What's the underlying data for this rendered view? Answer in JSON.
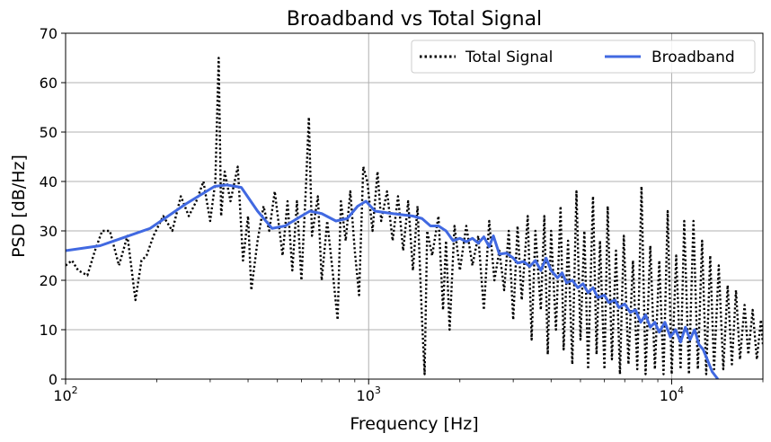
{
  "chart_data": {
    "type": "line",
    "title": "Broadband vs Total Signal",
    "xlabel": "Frequency [Hz]",
    "ylabel": "PSD [dB/Hz]",
    "xscale": "log",
    "xlim": [
      100,
      20000
    ],
    "ylim": [
      0,
      70
    ],
    "x_ticks": [
      {
        "value": 100,
        "base": "10",
        "exp": "2"
      },
      {
        "value": 1000,
        "base": "10",
        "exp": "3"
      },
      {
        "value": 10000,
        "base": "10",
        "exp": "4"
      }
    ],
    "y_ticks": [
      0,
      10,
      20,
      30,
      40,
      50,
      60,
      70
    ],
    "grid": true,
    "legend": {
      "position": "top-right",
      "columns": 2
    },
    "series": [
      {
        "name": "Total Signal",
        "style": "dotted",
        "color": "#000000",
        "points": [
          [
            100,
            23
          ],
          [
            105,
            24
          ],
          [
            110,
            22
          ],
          [
            118,
            21
          ],
          [
            125,
            26
          ],
          [
            132,
            30
          ],
          [
            140,
            30
          ],
          [
            150,
            23
          ],
          [
            160,
            29
          ],
          [
            170,
            16
          ],
          [
            178,
            24
          ],
          [
            185,
            25
          ],
          [
            195,
            29
          ],
          [
            210,
            33
          ],
          [
            225,
            30
          ],
          [
            240,
            37
          ],
          [
            255,
            33
          ],
          [
            270,
            36
          ],
          [
            285,
            40
          ],
          [
            300,
            32
          ],
          [
            312,
            40
          ],
          [
            320,
            65
          ],
          [
            326,
            33
          ],
          [
            335,
            42
          ],
          [
            350,
            36
          ],
          [
            370,
            43
          ],
          [
            385,
            24
          ],
          [
            400,
            33
          ],
          [
            410,
            18
          ],
          [
            430,
            28
          ],
          [
            450,
            35
          ],
          [
            470,
            30
          ],
          [
            490,
            38
          ],
          [
            520,
            25
          ],
          [
            540,
            36
          ],
          [
            560,
            22
          ],
          [
            580,
            36
          ],
          [
            600,
            20
          ],
          [
            620,
            38
          ],
          [
            635,
            53
          ],
          [
            650,
            29
          ],
          [
            680,
            37
          ],
          [
            700,
            20
          ],
          [
            730,
            32
          ],
          [
            760,
            22
          ],
          [
            790,
            12
          ],
          [
            810,
            36
          ],
          [
            840,
            28
          ],
          [
            870,
            38
          ],
          [
            900,
            26
          ],
          [
            930,
            17
          ],
          [
            960,
            43
          ],
          [
            990,
            40
          ],
          [
            1030,
            30
          ],
          [
            1070,
            42
          ],
          [
            1100,
            32
          ],
          [
            1150,
            38
          ],
          [
            1200,
            28
          ],
          [
            1250,
            37
          ],
          [
            1300,
            26
          ],
          [
            1350,
            36
          ],
          [
            1400,
            22
          ],
          [
            1450,
            35
          ],
          [
            1500,
            12
          ],
          [
            1530,
            1
          ],
          [
            1560,
            30
          ],
          [
            1620,
            25
          ],
          [
            1700,
            33
          ],
          [
            1760,
            14
          ],
          [
            1800,
            28
          ],
          [
            1850,
            10
          ],
          [
            1920,
            31
          ],
          [
            2000,
            22
          ],
          [
            2100,
            31
          ],
          [
            2200,
            23
          ],
          [
            2300,
            29
          ],
          [
            2400,
            14
          ],
          [
            2500,
            32
          ],
          [
            2600,
            20
          ],
          [
            2700,
            26
          ],
          [
            2800,
            18
          ],
          [
            2900,
            30
          ],
          [
            3000,
            12
          ],
          [
            3100,
            31
          ],
          [
            3200,
            16
          ],
          [
            3350,
            33
          ],
          [
            3450,
            8
          ],
          [
            3550,
            30
          ],
          [
            3700,
            14
          ],
          [
            3800,
            33
          ],
          [
            3900,
            5
          ],
          [
            4000,
            30
          ],
          [
            4150,
            10
          ],
          [
            4300,
            35
          ],
          [
            4400,
            6
          ],
          [
            4550,
            28
          ],
          [
            4700,
            3
          ],
          [
            4850,
            38
          ],
          [
            5000,
            8
          ],
          [
            5150,
            30
          ],
          [
            5300,
            2
          ],
          [
            5500,
            37
          ],
          [
            5650,
            5
          ],
          [
            5800,
            28
          ],
          [
            6000,
            2
          ],
          [
            6150,
            35
          ],
          [
            6350,
            4
          ],
          [
            6550,
            26
          ],
          [
            6750,
            1
          ],
          [
            6950,
            29
          ],
          [
            7200,
            3
          ],
          [
            7450,
            24
          ],
          [
            7700,
            2
          ],
          [
            7950,
            39
          ],
          [
            8200,
            1
          ],
          [
            8500,
            27
          ],
          [
            8800,
            2
          ],
          [
            9100,
            24
          ],
          [
            9400,
            1
          ],
          [
            9700,
            34
          ],
          [
            10000,
            1
          ],
          [
            10350,
            25
          ],
          [
            10700,
            2
          ],
          [
            11000,
            32
          ],
          [
            11400,
            1
          ],
          [
            11800,
            32
          ],
          [
            12200,
            2
          ],
          [
            12600,
            28
          ],
          [
            13000,
            1
          ],
          [
            13400,
            25
          ],
          [
            13800,
            2
          ],
          [
            14300,
            23
          ],
          [
            14800,
            2
          ],
          [
            15300,
            19
          ],
          [
            15800,
            3
          ],
          [
            16300,
            18
          ],
          [
            16800,
            4
          ],
          [
            17400,
            15
          ],
          [
            17900,
            5
          ],
          [
            18500,
            14
          ],
          [
            19100,
            4
          ],
          [
            19700,
            12
          ],
          [
            20000,
            7
          ]
        ]
      },
      {
        "name": "Broadband",
        "style": "solid",
        "color": "#4169e1",
        "points": [
          [
            100,
            26
          ],
          [
            130,
            27
          ],
          [
            190,
            30.5
          ],
          [
            250,
            35.5
          ],
          [
            310,
            39
          ],
          [
            340,
            39.3
          ],
          [
            380,
            38.8
          ],
          [
            430,
            34
          ],
          [
            480,
            30.5
          ],
          [
            530,
            31
          ],
          [
            600,
            33
          ],
          [
            640,
            34
          ],
          [
            700,
            33.5
          ],
          [
            780,
            32
          ],
          [
            850,
            32.5
          ],
          [
            920,
            35
          ],
          [
            980,
            36
          ],
          [
            1050,
            34
          ],
          [
            1200,
            33.5
          ],
          [
            1400,
            33
          ],
          [
            1500,
            32.5
          ],
          [
            1600,
            31
          ],
          [
            1700,
            31
          ],
          [
            1800,
            30
          ],
          [
            1900,
            28
          ],
          [
            2000,
            28.5
          ],
          [
            2100,
            27.8
          ],
          [
            2200,
            28.5
          ],
          [
            2300,
            27.5
          ],
          [
            2400,
            28.8
          ],
          [
            2500,
            26.8
          ],
          [
            2580,
            29
          ],
          [
            2700,
            25.3
          ],
          [
            2850,
            25.5
          ],
          [
            3000,
            24.5
          ],
          [
            3100,
            23.5
          ],
          [
            3250,
            23.8
          ],
          [
            3400,
            22.8
          ],
          [
            3550,
            24
          ],
          [
            3700,
            22
          ],
          [
            3850,
            24.5
          ],
          [
            4000,
            22
          ],
          [
            4200,
            20.5
          ],
          [
            4350,
            21.5
          ],
          [
            4500,
            19.5
          ],
          [
            4700,
            20
          ],
          [
            4900,
            18.5
          ],
          [
            5100,
            19.3
          ],
          [
            5300,
            17.5
          ],
          [
            5500,
            18.5
          ],
          [
            5700,
            16.5
          ],
          [
            6000,
            17
          ],
          [
            6200,
            15.5
          ],
          [
            6500,
            16
          ],
          [
            6700,
            14.5
          ],
          [
            7000,
            15.2
          ],
          [
            7300,
            13.5
          ],
          [
            7600,
            14
          ],
          [
            7900,
            11.5
          ],
          [
            8200,
            13
          ],
          [
            8500,
            10.5
          ],
          [
            8800,
            11.5
          ],
          [
            9100,
            9.5
          ],
          [
            9500,
            11.5
          ],
          [
            9900,
            8.5
          ],
          [
            10300,
            10
          ],
          [
            10700,
            7.5
          ],
          [
            11100,
            10.5
          ],
          [
            11500,
            8
          ],
          [
            11900,
            10
          ],
          [
            12300,
            7
          ],
          [
            12700,
            6
          ],
          [
            13100,
            4
          ],
          [
            13600,
            1.5
          ],
          [
            14200,
            0
          ]
        ]
      }
    ]
  }
}
